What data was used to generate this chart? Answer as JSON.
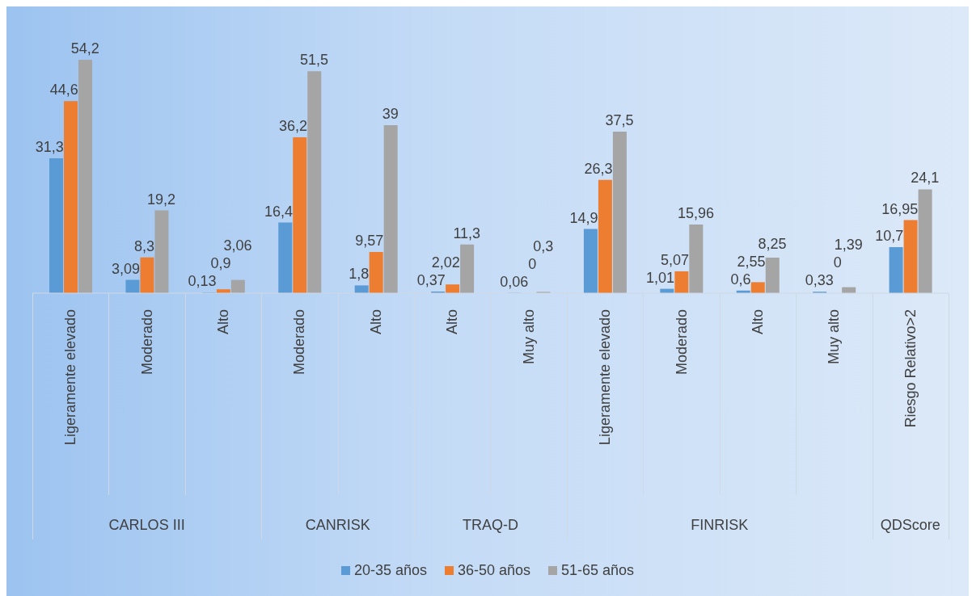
{
  "chart_data": {
    "type": "bar",
    "categories": [
      "Ligeramente elevado",
      "Moderado",
      "Alto",
      "Moderado",
      "Alto",
      "Alto",
      "Muy alto",
      "Ligeramente elevado",
      "Moderado",
      "Alto",
      "Muy alto",
      "Riesgo Relativo>2"
    ],
    "annotations": [
      "CARLOS III",
      "CANRISK",
      "TRAQ-D",
      "FINRISK",
      "QDScore"
    ],
    "series": [
      {
        "name": "20-35 años",
        "color": "#5b9bd5",
        "values": [
          31.3,
          3.09,
          0.13,
          16.4,
          1.8,
          0.37,
          0.06,
          14.9,
          1.01,
          0.6,
          0.33,
          10.7
        ],
        "value_labels": [
          "31,3",
          "3,09",
          "0,13",
          "16,4",
          "1,8",
          "0,37",
          "0,06",
          "14,9",
          "1,01",
          "0,6",
          "0,33",
          "10,7"
        ]
      },
      {
        "name": "36-50 años",
        "color": "#ed7d31",
        "values": [
          44.6,
          8.3,
          0.9,
          36.2,
          9.57,
          2.02,
          0,
          26.3,
          5.07,
          2.55,
          0,
          16.95
        ],
        "value_labels": [
          "44,6",
          "8,3",
          "0,9",
          "36,2",
          "9,57",
          "2,02",
          "0",
          "26,3",
          "5,07",
          "2,55",
          "0",
          "16,95"
        ]
      },
      {
        "name": "51-65 años",
        "color": "#a5a5a5",
        "values": [
          54.2,
          19.2,
          3.06,
          51.5,
          39,
          11.3,
          0.3,
          37.5,
          15.96,
          8.25,
          1.39,
          24.1
        ],
        "value_labels": [
          "54,2",
          "19,2",
          "3,06",
          "51,5",
          "39",
          "11,3",
          "0,3",
          "37,5",
          "15,96",
          "8,25",
          "1,39",
          "24,1"
        ]
      }
    ],
    "legend": "bottom"
  }
}
